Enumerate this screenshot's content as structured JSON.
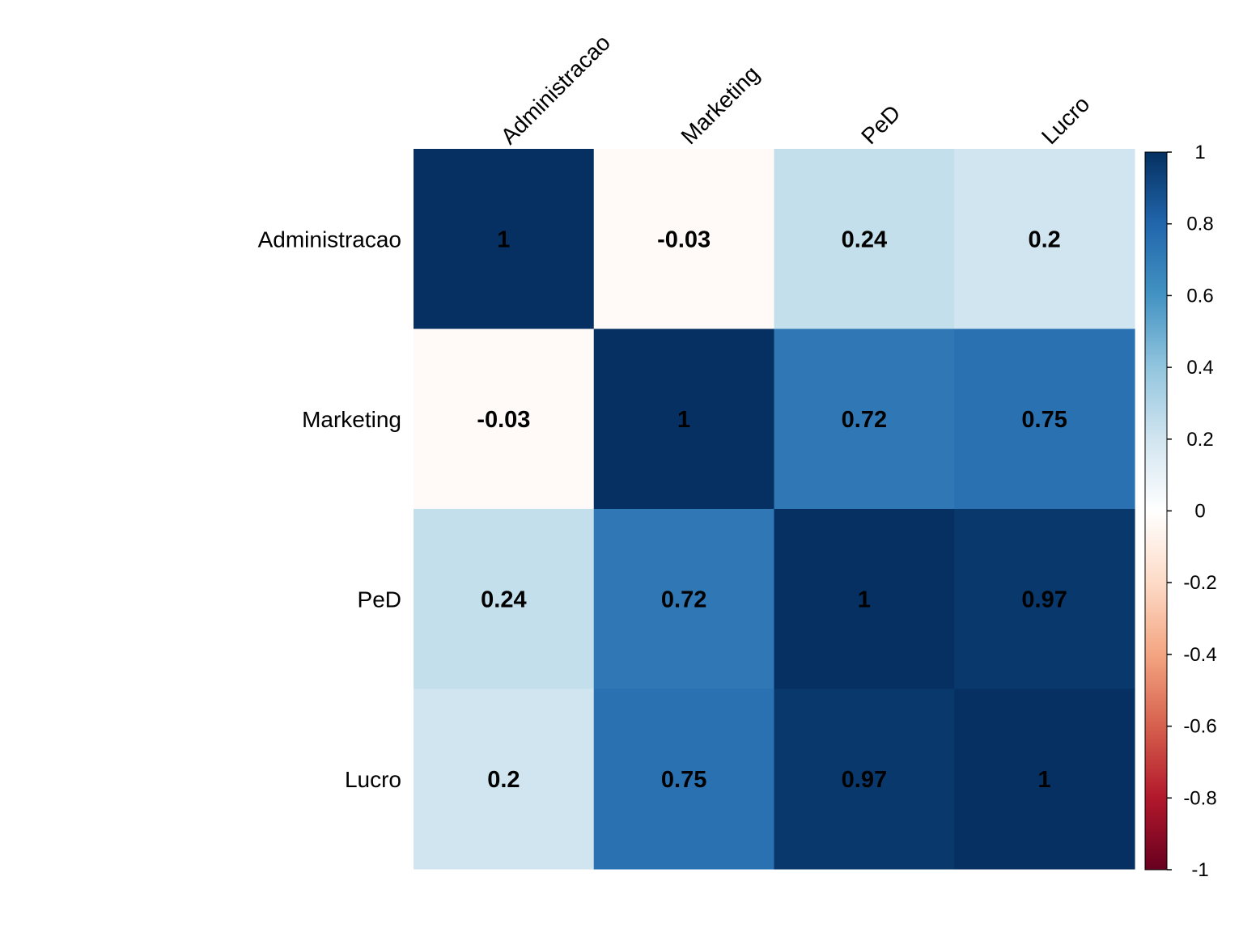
{
  "chart_data": {
    "type": "heatmap",
    "variables": [
      "Administracao",
      "Marketing",
      "PeD",
      "Lucro"
    ],
    "matrix": [
      [
        1,
        -0.03,
        0.24,
        0.2
      ],
      [
        -0.03,
        1,
        0.72,
        0.75
      ],
      [
        0.24,
        0.72,
        1,
        0.97
      ],
      [
        0.2,
        0.75,
        0.97,
        1
      ]
    ],
    "cell_labels": [
      [
        "1",
        "-0.03",
        "0.24",
        "0.2"
      ],
      [
        "-0.03",
        "1",
        "0.72",
        "0.75"
      ],
      [
        "0.24",
        "0.72",
        "1",
        "0.97"
      ],
      [
        "0.2",
        "0.75",
        "0.97",
        "1"
      ]
    ],
    "colorbar": {
      "range": [
        -1,
        1
      ],
      "ticks": [
        1,
        0.8,
        0.6,
        0.4,
        0.2,
        0,
        -0.2,
        -0.4,
        -0.6,
        -0.8,
        -1
      ],
      "tick_labels": [
        "1",
        "0.8",
        "0.6",
        "0.4",
        "0.2",
        "0",
        "-0.2",
        "-0.4",
        "-0.6",
        "-0.8",
        "-1"
      ],
      "position": "right"
    },
    "palette": [
      "#67001F",
      "#B2182B",
      "#D6604D",
      "#F4A582",
      "#FDDBC7",
      "#FFFFFF",
      "#D1E5F0",
      "#92C5DE",
      "#4393C3",
      "#2166AC",
      "#053061"
    ],
    "column_label_rotation": "diagonal",
    "grid": false
  }
}
